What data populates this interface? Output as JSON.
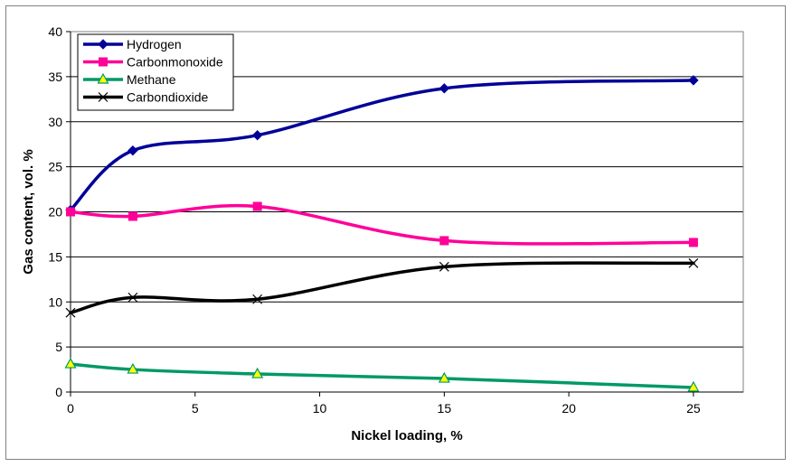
{
  "chart_data": {
    "type": "line",
    "title": "",
    "xlabel": "Nickel loading, %",
    "ylabel": "Gas content, vol. %",
    "xlim": [
      0,
      27
    ],
    "ylim": [
      0,
      40
    ],
    "x_ticks": [
      0,
      5,
      10,
      15,
      20,
      25
    ],
    "y_ticks": [
      0,
      5,
      10,
      15,
      20,
      25,
      30,
      35,
      40
    ],
    "grid": "horizontal",
    "legend_position": "top-left",
    "x": [
      0,
      2.5,
      7.5,
      15,
      25
    ],
    "series": [
      {
        "name": "Hydrogen",
        "color": "#000099",
        "marker": "diamond",
        "values": [
          20.2,
          26.8,
          28.5,
          33.7,
          34.6
        ]
      },
      {
        "name": "Carbonmonoxide",
        "color": "#ff0099",
        "marker": "square",
        "values": [
          20.0,
          19.5,
          20.6,
          16.8,
          16.6
        ]
      },
      {
        "name": "Methane",
        "color": "#009966",
        "marker": "triangle",
        "marker_fill": "#ffff00",
        "values": [
          3.1,
          2.5,
          2.0,
          1.5,
          0.5
        ]
      },
      {
        "name": "Carbondioxide",
        "color": "#000000",
        "marker": "x",
        "values": [
          8.8,
          10.5,
          10.3,
          13.9,
          14.3
        ]
      }
    ]
  }
}
